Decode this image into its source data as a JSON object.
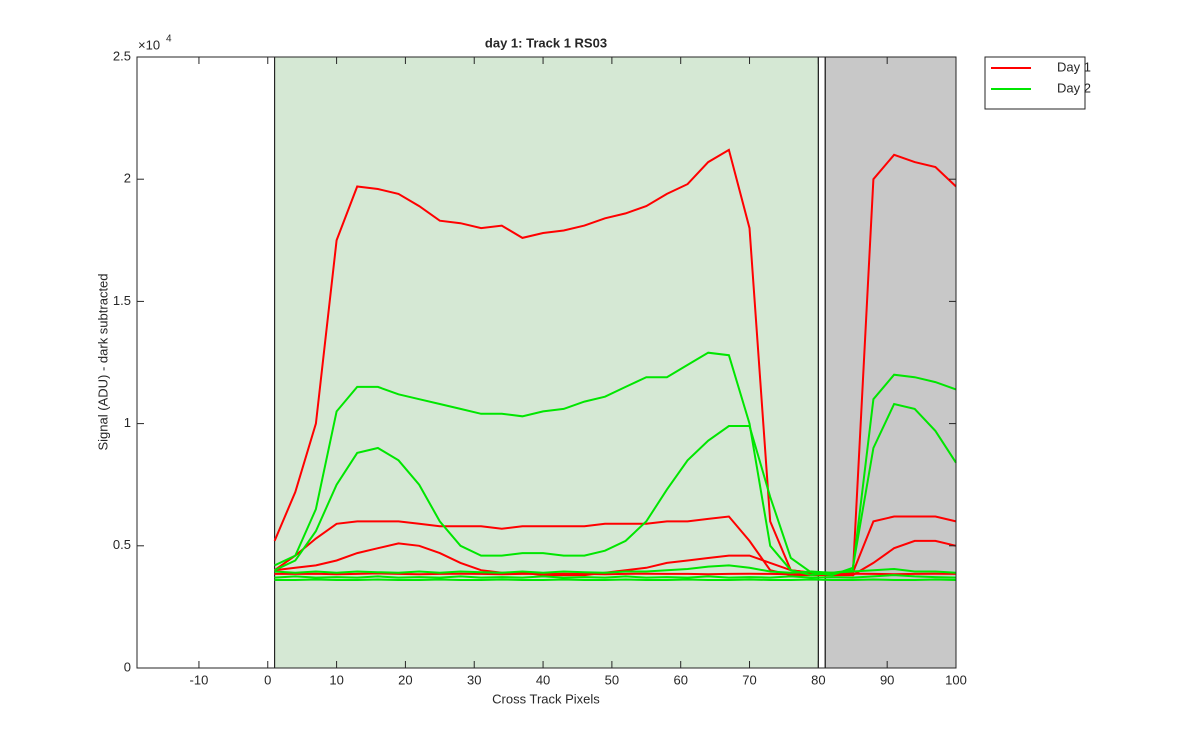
{
  "chart_data": {
    "type": "line",
    "title": "day 1: Track 1  RS03",
    "x_label": "Cross Track Pixels",
    "y_label": "Signal (ADU) - dark subtracted",
    "y_multiplier": {
      "base": "×10",
      "exponent": "4"
    },
    "xlim": [
      -19,
      100
    ],
    "ylim": [
      0,
      25000
    ],
    "xticks": [
      -10,
      0,
      10,
      20,
      30,
      40,
      50,
      60,
      70,
      80,
      90,
      100
    ],
    "yticks": [
      {
        "value": 0,
        "label": "0"
      },
      {
        "value": 5000,
        "label": "0.5"
      },
      {
        "value": 10000,
        "label": "1"
      },
      {
        "value": 15000,
        "label": "1.5"
      },
      {
        "value": 20000,
        "label": "2"
      },
      {
        "value": 25000,
        "label": "2.5"
      }
    ],
    "legend": "outside-top-right",
    "regions": [
      {
        "x0": 1,
        "x1": 80,
        "color": "#d5e8d4"
      },
      {
        "x0": 80,
        "x1": 81,
        "color": "#ffffff"
      },
      {
        "x0": 81,
        "x1": 100,
        "color": "#c8c8c8"
      }
    ],
    "x": [
      1,
      4,
      7,
      10,
      13,
      16,
      19,
      22,
      25,
      28,
      31,
      34,
      37,
      40,
      43,
      46,
      49,
      52,
      55,
      58,
      61,
      64,
      67,
      70,
      73,
      76,
      79,
      82,
      85,
      88,
      91,
      94,
      97,
      100
    ],
    "series": [
      {
        "name": "Day 1",
        "color": "#ff0000",
        "values": [
          [
            5200,
            7200,
            10000,
            17500,
            19700,
            19600,
            19400,
            18900,
            18300,
            18200,
            18000,
            18100,
            17600,
            17800,
            17900,
            18100,
            18400,
            18600,
            18900,
            19400,
            19800,
            20700,
            21200,
            18000,
            6000,
            4000,
            3900,
            3900,
            3800,
            20000,
            21000,
            20700,
            20500,
            19700
          ],
          [
            4000,
            4600,
            5300,
            5900,
            6000,
            6000,
            6000,
            5900,
            5800,
            5800,
            5800,
            5700,
            5800,
            5800,
            5800,
            5800,
            5900,
            5900,
            5900,
            6000,
            6000,
            6100,
            6200,
            5200,
            4000,
            3800,
            3800,
            3800,
            3900,
            6000,
            6200,
            6200,
            6200,
            6000
          ],
          [
            4000,
            4100,
            4200,
            4400,
            4700,
            4900,
            5100,
            5000,
            4700,
            4300,
            4000,
            3900,
            3900,
            3800,
            3800,
            3800,
            3900,
            4000,
            4100,
            4300,
            4400,
            4500,
            4600,
            4600,
            4300,
            4000,
            3900,
            3800,
            3800,
            4300,
            4900,
            5200,
            5200,
            5000
          ],
          [
            3850,
            3850,
            3860,
            3840,
            3850,
            3870,
            3850,
            3840,
            3850,
            3860,
            3850,
            3840,
            3850,
            3850,
            3860,
            3850,
            3840,
            3850,
            3860,
            3850,
            3850,
            3840,
            3850,
            3860,
            3850,
            3840,
            3850,
            3850,
            3860,
            3850,
            3840,
            3850,
            3860,
            3850
          ]
        ]
      },
      {
        "name": "Day 2",
        "color": "#00e600",
        "values": [
          [
            4200,
            4600,
            6500,
            10500,
            11500,
            11500,
            11200,
            11000,
            10800,
            10600,
            10400,
            10400,
            10300,
            10500,
            10600,
            10900,
            11100,
            11500,
            11900,
            11900,
            12400,
            12900,
            12800,
            10000,
            5000,
            4000,
            3800,
            3900,
            4000,
            11000,
            12000,
            11900,
            11700,
            11400
          ],
          [
            4000,
            4400,
            5600,
            7500,
            8800,
            9000,
            8500,
            7500,
            6000,
            5000,
            4600,
            4600,
            4700,
            4700,
            4600,
            4600,
            4800,
            5200,
            6000,
            7300,
            8500,
            9300,
            9900,
            9900,
            7000,
            4500,
            3900,
            3800,
            4100,
            9000,
            10800,
            10600,
            9700,
            8400
          ],
          [
            3950,
            3900,
            3950,
            3900,
            3950,
            3920,
            3900,
            3950,
            3900,
            3950,
            3920,
            3900,
            3950,
            3900,
            3950,
            3920,
            3900,
            3950,
            3950,
            4000,
            4050,
            4150,
            4200,
            4100,
            3950,
            3900,
            3950,
            3900,
            3950,
            4000,
            4050,
            3950,
            3950,
            3900
          ],
          [
            3700,
            3750,
            3700,
            3720,
            3700,
            3750,
            3700,
            3720,
            3700,
            3750,
            3700,
            3720,
            3700,
            3750,
            3700,
            3720,
            3700,
            3750,
            3700,
            3720,
            3700,
            3750,
            3700,
            3720,
            3700,
            3750,
            3700,
            3720,
            3700,
            3750,
            3800,
            3750,
            3720,
            3700
          ],
          [
            3600,
            3600,
            3620,
            3600,
            3600,
            3620,
            3600,
            3600,
            3620,
            3600,
            3600,
            3620,
            3600,
            3600,
            3620,
            3600,
            3600,
            3620,
            3600,
            3600,
            3620,
            3600,
            3600,
            3620,
            3600,
            3600,
            3620,
            3600,
            3600,
            3620,
            3600,
            3600,
            3620,
            3600
          ]
        ]
      }
    ]
  }
}
